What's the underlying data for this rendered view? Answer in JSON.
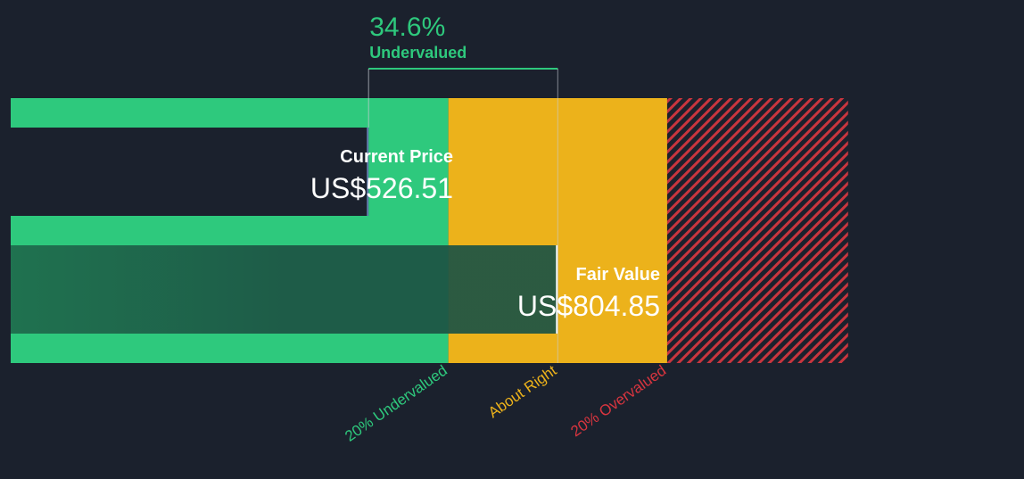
{
  "chart_data": {
    "type": "bar",
    "title": "",
    "xlabel": "",
    "ylabel": "",
    "xlim": [
      0,
      1148
    ],
    "series": [
      {
        "name": "Current Price",
        "value": 526.51,
        "label": "Current Price",
        "value_text": "US$526.51"
      },
      {
        "name": "Fair Value",
        "value": 804.85,
        "label": "Fair Value",
        "value_text": "US$804.85"
      }
    ],
    "zones": [
      {
        "label": "20% Undervalued",
        "start": 0,
        "end": 643.88
      },
      {
        "label": "About Right",
        "start": 643.88,
        "end": 965.82
      },
      {
        "label": "20% Overvalued",
        "start": 965.82,
        "end": 1232
      }
    ],
    "annotation": {
      "percent": "34.6%",
      "label": "Undervalued"
    }
  },
  "colors": {
    "background": "#1b212d",
    "undervalued": "#2ec97d",
    "about_right": "#ecb21b",
    "overvalued": "#d8353f",
    "fair_value_overlay": "#1f5542"
  }
}
